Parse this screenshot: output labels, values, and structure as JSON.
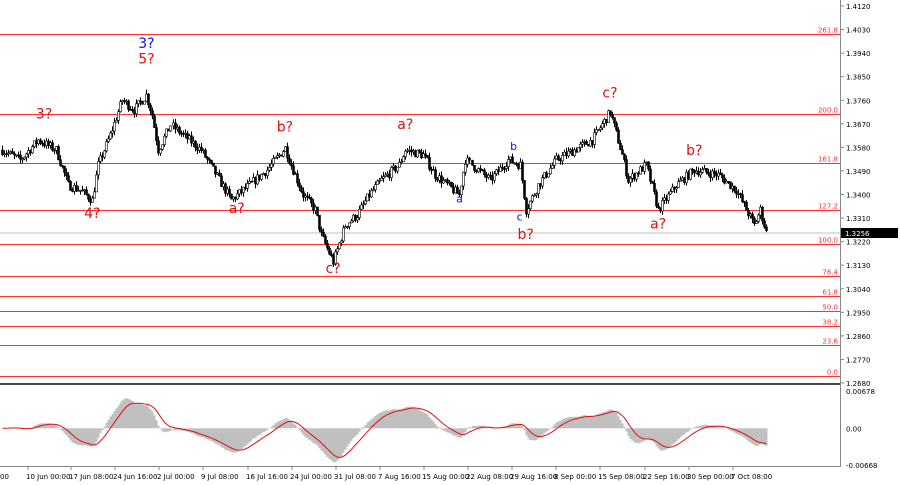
{
  "chart_data": {
    "type": "candlestick",
    "price_axis": {
      "ticks": [
        "1.4120",
        "1.4030",
        "1.3940",
        "1.3850",
        "1.3760",
        "1.3670",
        "1.3580",
        "1.3490",
        "1.3400",
        "1.3310",
        "1.3220",
        "1.3130",
        "1.3040",
        "1.2950",
        "1.2860",
        "1.2770",
        "1.2680"
      ],
      "range": [
        1.268,
        1.412
      ]
    },
    "current_price": "1.3256",
    "time_axis": {
      "ticks": [
        "00",
        "10 Jun 00:00",
        "17 Jun 08:00",
        "24 Jun 16:00",
        "2 Jul 00:00",
        "9 Jul 08:00",
        "16 Jul 16:00",
        "24 Jul 00:00",
        "31 Jul 08:00",
        "7 Aug 16:00",
        "15 Aug 00:00",
        "22 Aug 08:00",
        "29 Aug 16:00",
        "8 Sep 00:00",
        "15 Sep 08:00",
        "22 Sep 16:00",
        "30 Sep 00:00",
        "7 Oct 08:00"
      ]
    },
    "price_path": [
      [
        "Jun 7",
        1.357
      ],
      [
        "Jun 10",
        1.3532
      ],
      [
        "Jun 13",
        1.3608
      ],
      [
        "Jun 16",
        1.357
      ],
      [
        "Jun 18",
        1.3436
      ],
      [
        "Jun 20",
        1.3417
      ],
      [
        "Jun 22",
        1.3379
      ],
      [
        "Jun 23",
        1.3513
      ],
      [
        "Jun 25",
        1.3627
      ],
      [
        "Jun 27",
        1.3761
      ],
      [
        "Jun 29",
        1.3723
      ],
      [
        "Jul 1",
        1.378
      ],
      [
        "Jul 2",
        1.3704
      ],
      [
        "Jul 3",
        1.357
      ],
      [
        "Jul 5",
        1.3665
      ],
      [
        "Jul 7",
        1.3627
      ],
      [
        "Jul 10",
        1.357
      ],
      [
        "Jul 12",
        1.3494
      ],
      [
        "Jul 15",
        1.3379
      ],
      [
        "Jul 18",
        1.3436
      ],
      [
        "Jul 21",
        1.3494
      ],
      [
        "Jul 24",
        1.3578
      ],
      [
        "Jul 25",
        1.3513
      ],
      [
        "Jul 27",
        1.3398
      ],
      [
        "Jul 29",
        1.3341
      ],
      [
        "Jul 30",
        1.3245
      ],
      [
        "Aug 1",
        1.3142
      ],
      [
        "Aug 3",
        1.3283
      ],
      [
        "Aug 5",
        1.3322
      ],
      [
        "Aug 7",
        1.3398
      ],
      [
        "Aug 9",
        1.3455
      ],
      [
        "Aug 12",
        1.3513
      ],
      [
        "Aug 13",
        1.357
      ],
      [
        "Aug 16",
        1.3551
      ],
      [
        "Aug 18",
        1.3475
      ],
      [
        "Aug 22",
        1.3398
      ],
      [
        "Aug 23",
        1.3532
      ],
      [
        "Aug 27",
        1.3455
      ],
      [
        "Aug 30",
        1.3532
      ],
      [
        "Sep 1",
        1.3513
      ],
      [
        "Sep 2",
        1.3341
      ],
      [
        "Sep 4",
        1.3436
      ],
      [
        "Sep 7",
        1.3532
      ],
      [
        "Sep 10",
        1.357
      ],
      [
        "Sep 13",
        1.3608
      ],
      [
        "Sep 16",
        1.3715
      ],
      [
        "Sep 18",
        1.3551
      ],
      [
        "Sep 19",
        1.3455
      ],
      [
        "Sep 22",
        1.3513
      ],
      [
        "Sep 24",
        1.3341
      ],
      [
        "Sep 27",
        1.3436
      ],
      [
        "Sep 30",
        1.3494
      ],
      [
        "Oct 4",
        1.3475
      ],
      [
        "Oct 7",
        1.3417
      ],
      [
        "Oct 10",
        1.3283
      ],
      [
        "Oct 11",
        1.3341
      ],
      [
        "Oct 12",
        1.3256
      ]
    ],
    "fib_levels": [
      {
        "label": "261.8",
        "price": 1.4013
      },
      {
        "label": "200.0",
        "price": 1.3707
      },
      {
        "label": "161.8",
        "price": 1.352
      },
      {
        "label": "127.2",
        "price": 1.3341
      },
      {
        "label": "100.0",
        "price": 1.3211
      },
      {
        "label": "76.4",
        "price": 1.3089
      },
      {
        "label": "61.8",
        "price": 1.3012
      },
      {
        "label": "50.0",
        "price": 1.2955
      },
      {
        "label": "38.2",
        "price": 1.2898
      },
      {
        "label": "23.6",
        "price": 1.2825
      },
      {
        "label": "0.0",
        "price": 1.2707
      }
    ],
    "annotations": [
      {
        "text": "3?",
        "color": "#1010e0",
        "date": "Jul 1",
        "price": 1.396,
        "size": "large"
      },
      {
        "text": "5?",
        "color": "#e01010",
        "date": "Jul 1",
        "price": 1.39,
        "size": "large"
      },
      {
        "text": "3?",
        "color": "#e01010",
        "date": "Jun 14",
        "price": 1.369,
        "size": "large"
      },
      {
        "text": "4?",
        "color": "#e01010",
        "date": "Jun 22",
        "price": 1.331,
        "size": "large"
      },
      {
        "text": "a?",
        "color": "#e01010",
        "date": "Jul 16",
        "price": 1.333,
        "size": "large"
      },
      {
        "text": "b?",
        "color": "#e01010",
        "date": "Jul 24",
        "price": 1.364,
        "size": "large"
      },
      {
        "text": "c?",
        "color": "#e01010",
        "date": "Aug 1",
        "price": 1.31,
        "size": "large"
      },
      {
        "text": "a?",
        "color": "#e01010",
        "date": "Aug 13",
        "price": 1.365,
        "size": "large"
      },
      {
        "text": "a",
        "color": "#1010e0",
        "date": "Aug 22",
        "price": 1.337,
        "size": "small"
      },
      {
        "text": "b",
        "color": "#1010e0",
        "date": "Aug 31",
        "price": 1.357,
        "size": "small"
      },
      {
        "text": "c",
        "color": "#1010e0",
        "date": "Sep 1",
        "price": 1.33,
        "size": "small"
      },
      {
        "text": "b?",
        "color": "#e01010",
        "date": "Sep 2",
        "price": 1.323,
        "size": "large"
      },
      {
        "text": "c?",
        "color": "#e01010",
        "date": "Sep 16",
        "price": 1.377,
        "size": "large"
      },
      {
        "text": "b?",
        "color": "#e01010",
        "date": "Sep 30",
        "price": 1.355,
        "size": "large"
      },
      {
        "text": "a?",
        "color": "#e01010",
        "date": "Sep 24",
        "price": 1.327,
        "size": "large"
      }
    ],
    "oscillator": {
      "ticks": [
        "0.00678",
        "0.00",
        "-0.00668"
      ],
      "range": [
        -0.00668,
        0.00678
      ],
      "histogram_color": "#c0c0c0",
      "signal_color": "#e01010"
    },
    "colors": {
      "fib": "#ff3030",
      "current_price_tag": "#000000",
      "grid_line": "#c0c0c0"
    }
  }
}
